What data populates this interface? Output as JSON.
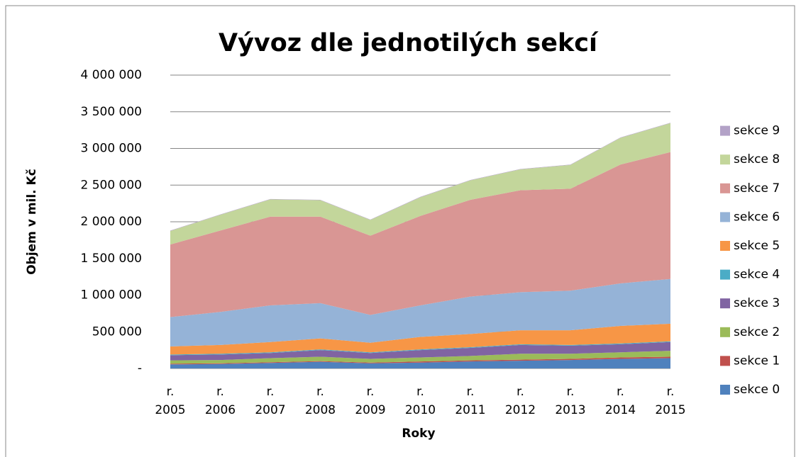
{
  "chart_data": {
    "type": "stacked_area",
    "title": "Vývoz dle jednotilých sekcí",
    "x_label": "Roky",
    "y_label": "Objem v mil. Kč",
    "categories": [
      "r. 2005",
      "r. 2006",
      "r. 2007",
      "r. 2008",
      "r. 2009",
      "r. 2010",
      "r. 2011",
      "r. 2012",
      "r. 2013",
      "r. 2014",
      "r. 2015"
    ],
    "ylim": [
      0,
      4000000
    ],
    "yticks": [
      {
        "value": 0,
        "label": "-"
      },
      {
        "value": 500000,
        "label": "500 000"
      },
      {
        "value": 1000000,
        "label": "1 000 000"
      },
      {
        "value": 1500000,
        "label": "1 500 000"
      },
      {
        "value": 2000000,
        "label": "2 000 000"
      },
      {
        "value": 2500000,
        "label": "2 500 000"
      },
      {
        "value": 3000000,
        "label": "3 000 000"
      },
      {
        "value": 3500000,
        "label": "3 500 000"
      },
      {
        "value": 4000000,
        "label": "4 000 000"
      }
    ],
    "grid": true,
    "legend": "right",
    "series": [
      {
        "name": "sekce 0",
        "color": "#4f81bd",
        "values": [
          55000,
          60000,
          75000,
          90000,
          70000,
          80000,
          95000,
          105000,
          115000,
          130000,
          140000
        ]
      },
      {
        "name": "sekce 1",
        "color": "#c0504d",
        "values": [
          10000,
          10000,
          10000,
          10000,
          10000,
          15000,
          15000,
          15000,
          15000,
          20000,
          20000
        ]
      },
      {
        "name": "sekce 2",
        "color": "#9bbb59",
        "values": [
          45000,
          45000,
          55000,
          60000,
          50000,
          55000,
          60000,
          80000,
          70000,
          70000,
          80000
        ]
      },
      {
        "name": "sekce 3",
        "color": "#8064a2",
        "values": [
          70000,
          75000,
          70000,
          90000,
          80000,
          100000,
          110000,
          120000,
          110000,
          110000,
          120000
        ]
      },
      {
        "name": "sekce 4",
        "color": "#4bacc6",
        "values": [
          10000,
          10000,
          10000,
          10000,
          10000,
          10000,
          10000,
          10000,
          10000,
          10000,
          10000
        ]
      },
      {
        "name": "sekce 5",
        "color": "#f79646",
        "values": [
          110000,
          120000,
          140000,
          150000,
          130000,
          170000,
          180000,
          190000,
          200000,
          240000,
          240000
        ]
      },
      {
        "name": "sekce 6",
        "color": "#95b3d7",
        "values": [
          400000,
          450000,
          500000,
          480000,
          380000,
          430000,
          510000,
          520000,
          540000,
          580000,
          610000
        ]
      },
      {
        "name": "sekce 7",
        "color": "#d99694",
        "values": [
          990000,
          1110000,
          1210000,
          1180000,
          1080000,
          1220000,
          1320000,
          1390000,
          1390000,
          1620000,
          1730000
        ]
      },
      {
        "name": "sekce 8",
        "color": "#c3d69b",
        "values": [
          185000,
          215000,
          235000,
          225000,
          215000,
          255000,
          265000,
          285000,
          325000,
          365000,
          395000
        ]
      },
      {
        "name": "sekce 9",
        "color": "#b3a2c7",
        "values": [
          5000,
          5000,
          5000,
          5000,
          5000,
          5000,
          5000,
          5000,
          5000,
          5000,
          5000
        ]
      }
    ]
  }
}
